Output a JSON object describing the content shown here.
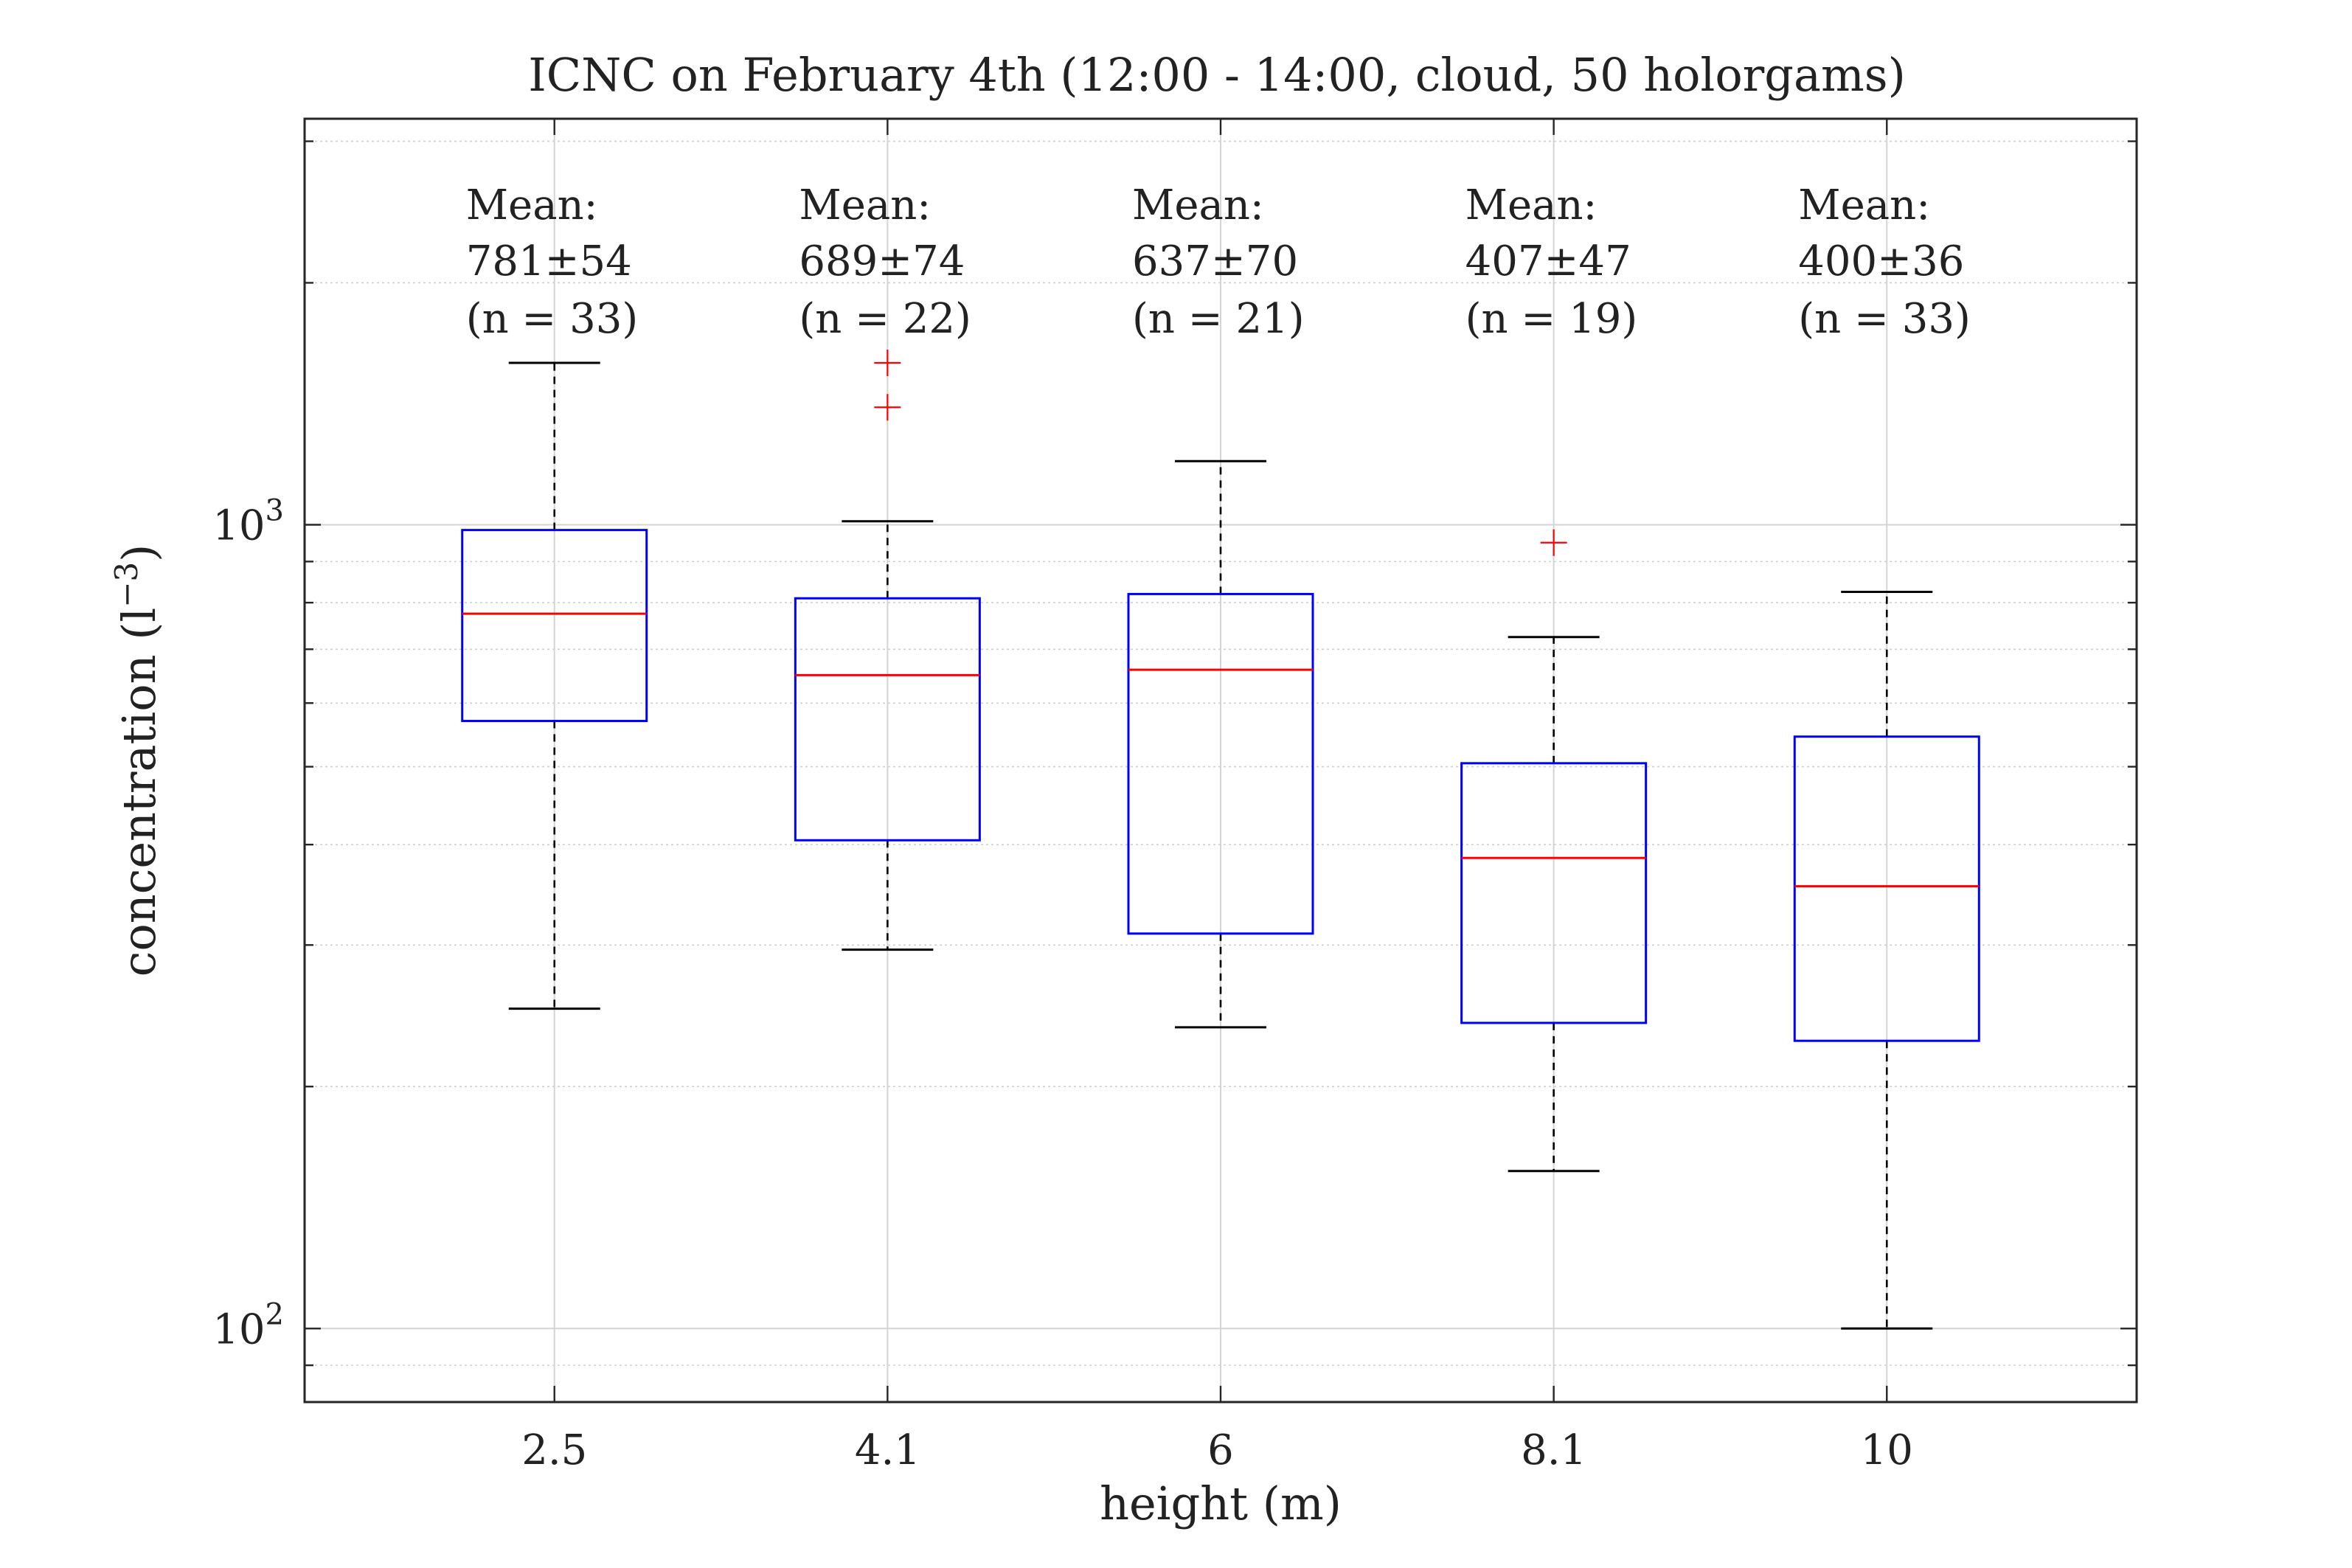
{
  "chart_data": {
    "type": "box",
    "title": "ICNC on February 4th (12:00 - 14:00, cloud, 50 holorgams)",
    "xlabel": "height (m)",
    "ylabel": "concentration (l",
    "ylabel_exponent": "−3",
    "ylabel_close": ")",
    "yscale": "log",
    "ylim": [
      81,
      3200
    ],
    "y_ticks": [
      {
        "value": 100,
        "base": "10",
        "exp": "2"
      },
      {
        "value": 1000,
        "base": "10",
        "exp": "3"
      }
    ],
    "grid": true,
    "categories": [
      "2.5",
      "4.1",
      "6",
      "8.1",
      "10"
    ],
    "boxes": [
      {
        "category": "2.5",
        "whisker_low": 250,
        "q1": 570,
        "median": 775,
        "q3": 985,
        "whisker_high": 1590,
        "outliers": []
      },
      {
        "category": "4.1",
        "whisker_low": 296,
        "q1": 405,
        "median": 650,
        "q3": 810,
        "whisker_high": 1010,
        "outliers": [
          1400,
          1590
        ]
      },
      {
        "category": "6",
        "whisker_low": 237,
        "q1": 310,
        "median": 660,
        "q3": 820,
        "whisker_high": 1200,
        "outliers": []
      },
      {
        "category": "8.1",
        "whisker_low": 157,
        "q1": 240,
        "median": 385,
        "q3": 505,
        "whisker_high": 725,
        "outliers": [
          950
        ]
      },
      {
        "category": "10",
        "whisker_low": 100,
        "q1": 228,
        "median": 355,
        "q3": 545,
        "whisker_high": 825,
        "outliers": []
      }
    ],
    "annotations": [
      {
        "category": "2.5",
        "line1": "Mean:",
        "line2": "781±54",
        "line3": "(n = 33)"
      },
      {
        "category": "4.1",
        "line1": "Mean:",
        "line2": "689±74",
        "line3": "(n = 22)"
      },
      {
        "category": "6",
        "line1": "Mean:",
        "line2": "637±70",
        "line3": "(n = 21)"
      },
      {
        "category": "8.1",
        "line1": "Mean:",
        "line2": "407±47",
        "line3": "(n = 19)"
      },
      {
        "category": "10",
        "line1": "Mean:",
        "line2": "400±36",
        "line3": "(n = 33)"
      }
    ],
    "colors": {
      "box": "#0000ff",
      "median": "#ff0000",
      "outlier": "#ff0000",
      "whisker": "#000000",
      "grid": "#cfcfcf"
    }
  }
}
